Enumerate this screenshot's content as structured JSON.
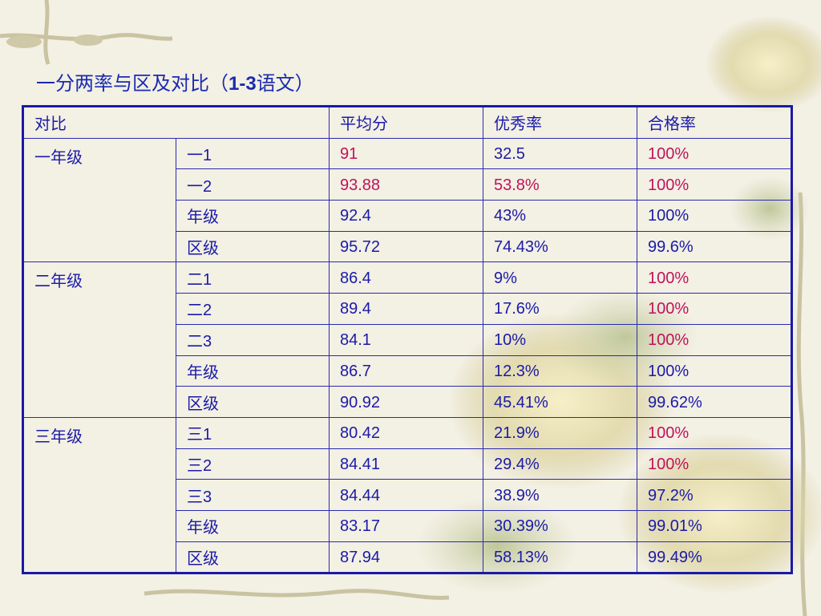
{
  "title": {
    "prefix": "一分两率与区及对比（",
    "range": "1-3",
    "suffix": "语文）"
  },
  "colors": {
    "table_text": "#1a1aa8",
    "highlight": "#c0125a",
    "title": "#1a2bb0",
    "border": "#2a2ab0"
  },
  "table": {
    "headers": [
      "对比",
      "平均分",
      "优秀率",
      "合格率"
    ],
    "groups": [
      {
        "grade": "一年级",
        "rows": [
          {
            "label": "一1",
            "avg": "91",
            "excellent": "32.5",
            "pass": "100%",
            "red": [
              true,
              false,
              true
            ]
          },
          {
            "label": "一2",
            "avg": "93.88",
            "excellent": "53.8%",
            "pass": "100%",
            "red": [
              true,
              true,
              true
            ]
          },
          {
            "label": "年级",
            "avg": "92.4",
            "excellent": "43%",
            "pass": "100%",
            "red": [
              false,
              false,
              false
            ]
          },
          {
            "label": "区级",
            "avg": "95.72",
            "excellent": "74.43%",
            "pass": "99.6%",
            "red": [
              false,
              false,
              false
            ]
          }
        ]
      },
      {
        "grade": "二年级",
        "rows": [
          {
            "label": "二1",
            "avg": "86.4",
            "excellent": "9%",
            "pass": "100%",
            "red": [
              false,
              false,
              true
            ]
          },
          {
            "label": "二2",
            "avg": "89.4",
            "excellent": "17.6%",
            "pass": "100%",
            "red": [
              false,
              false,
              true
            ]
          },
          {
            "label": "二3",
            "avg": "84.1",
            "excellent": "10%",
            "pass": "100%",
            "red": [
              false,
              false,
              true
            ]
          },
          {
            "label": "年级",
            "avg": "86.7",
            "excellent": "12.3%",
            "pass": "100%",
            "red": [
              false,
              false,
              false
            ]
          },
          {
            "label": "区级",
            "avg": "90.92",
            "excellent": "45.41%",
            "pass": "99.62%",
            "red": [
              false,
              false,
              false
            ]
          }
        ]
      },
      {
        "grade": "三年级",
        "rows": [
          {
            "label": "三1",
            "avg": "80.42",
            "excellent": "21.9%",
            "pass": "100%",
            "red": [
              false,
              false,
              true
            ]
          },
          {
            "label": "三2",
            "avg": "84.41",
            "excellent": "29.4%",
            "pass": "100%",
            "red": [
              false,
              false,
              true
            ]
          },
          {
            "label": "三3",
            "avg": "84.44",
            "excellent": "38.9%",
            "pass": "97.2%",
            "red": [
              false,
              false,
              false
            ]
          },
          {
            "label": "年级",
            "avg": "83.17",
            "excellent": "30.39%",
            "pass": "99.01%",
            "red": [
              false,
              false,
              false
            ]
          },
          {
            "label": "区级",
            "avg": "87.94",
            "excellent": "58.13%",
            "pass": "99.49%",
            "red": [
              false,
              false,
              false
            ]
          }
        ]
      }
    ]
  }
}
